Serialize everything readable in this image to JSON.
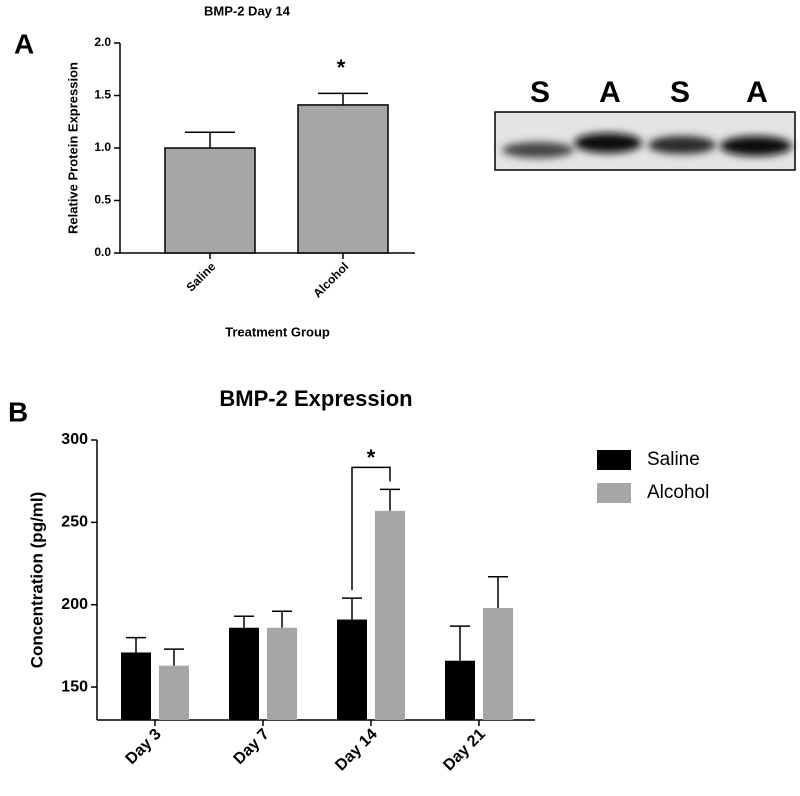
{
  "panels": [
    "A",
    "B"
  ],
  "blot": {
    "lanes": [
      "S",
      "A",
      "S",
      "A"
    ]
  },
  "chart_data": [
    {
      "type": "bar",
      "title": "BMP-2 Day 14",
      "y_label": "Relative Protein Expression",
      "x_label": "Treatment Group",
      "categories": [
        "Saline",
        "Alcohol"
      ],
      "values": [
        1.0,
        1.41
      ],
      "errors": [
        0.15,
        0.11
      ],
      "color": "#a6a6a6",
      "ylim": [
        0,
        2
      ],
      "yticks": [
        {
          "value": 0,
          "label": "0.0"
        },
        {
          "value": 0.5,
          "label": "0.5"
        },
        {
          "value": 1,
          "label": "1.0"
        },
        {
          "value": 1.5,
          "label": "1.5"
        },
        {
          "value": 2,
          "label": "2.0"
        }
      ],
      "annotation": "*"
    },
    {
      "type": "bar",
      "title": "BMP-2 Expression",
      "y_label": "Concentration (pg/ml)",
      "categories": [
        "Day 3",
        "Day 7",
        "Day 14",
        "Day 21"
      ],
      "series": [
        {
          "name": "Saline",
          "color": "#000000",
          "values": [
            171,
            186,
            191,
            166
          ],
          "errors": [
            9,
            7,
            13,
            21
          ]
        },
        {
          "name": "Alcohol",
          "color": "#a6a6a9",
          "values": [
            163,
            186,
            257,
            198
          ],
          "errors": [
            10,
            10,
            13,
            19
          ]
        }
      ],
      "ylim": [
        130,
        300
      ],
      "yticks": [
        150,
        200,
        250,
        300
      ],
      "legend": "right",
      "annotation": "*"
    }
  ]
}
